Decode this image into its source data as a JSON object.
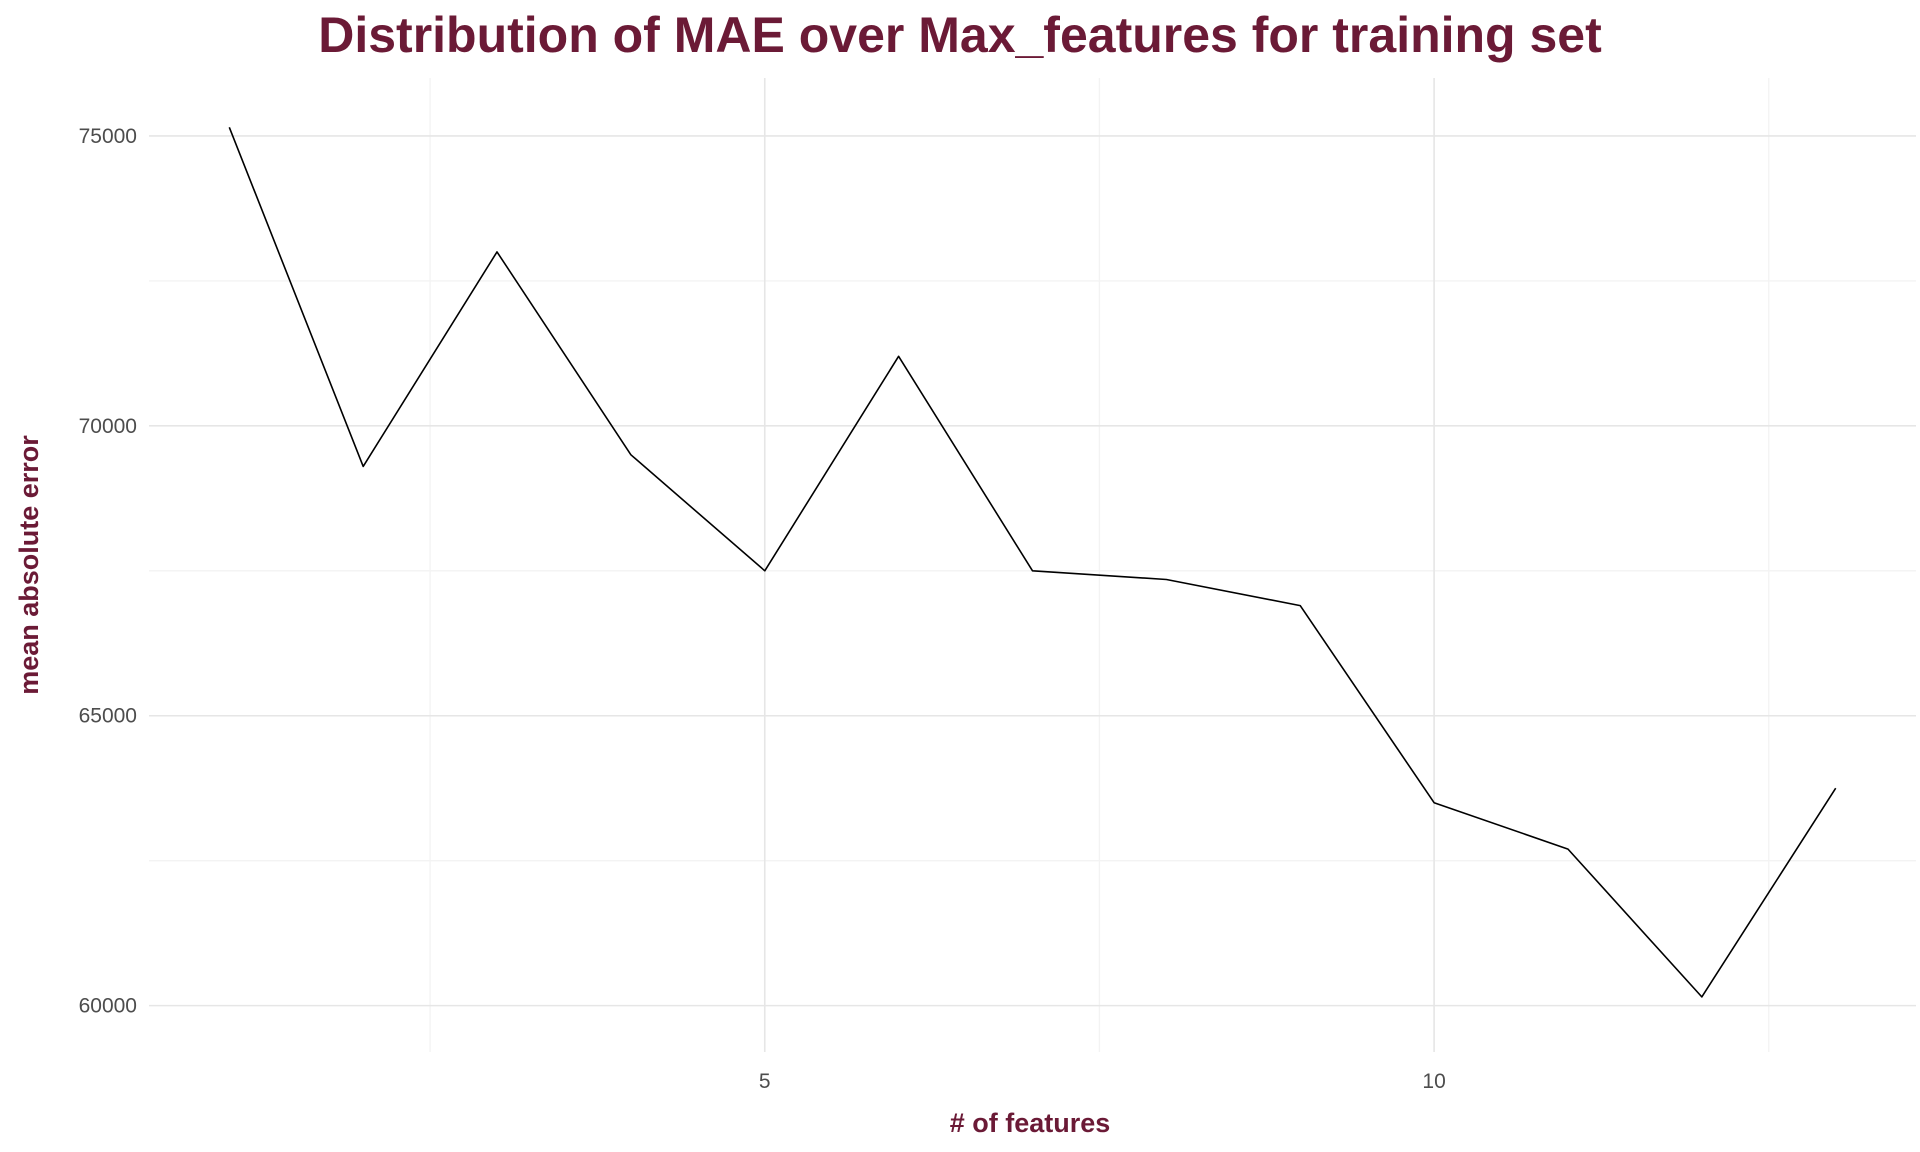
{
  "chart_data": {
    "type": "line",
    "title": "Distribution of MAE over Max_features for training set",
    "xlabel": "# of features",
    "ylabel": "mean absolute error",
    "xlim": [
      0.4,
      13.6
    ],
    "ylim": [
      59200,
      76000
    ],
    "x_ticks": [
      5,
      10
    ],
    "x_tick_labels": [
      "5",
      "10"
    ],
    "x_minor_ticks": [
      2.5,
      7.5,
      12.5
    ],
    "y_ticks": [
      60000,
      65000,
      70000,
      75000
    ],
    "y_tick_labels": [
      "60000",
      "65000",
      "70000",
      "75000"
    ],
    "y_minor_ticks": [
      62500,
      67500,
      72500
    ],
    "grid": true,
    "series": [
      {
        "x": [
          1,
          2,
          3,
          4,
          5,
          6,
          7,
          8,
          9,
          10,
          11,
          12,
          13
        ],
        "values": [
          75150,
          69300,
          73000,
          69500,
          67500,
          71200,
          67500,
          67350,
          66900,
          63500,
          62700,
          60150,
          63750
        ]
      }
    ]
  },
  "colors": {
    "title": "#6b1a36",
    "axis_title": "#6b1a36",
    "line": "#000000",
    "grid_major": "#e6e6e6",
    "grid_minor": "#f3f3f3",
    "tick_label": "#4d4d4d"
  }
}
